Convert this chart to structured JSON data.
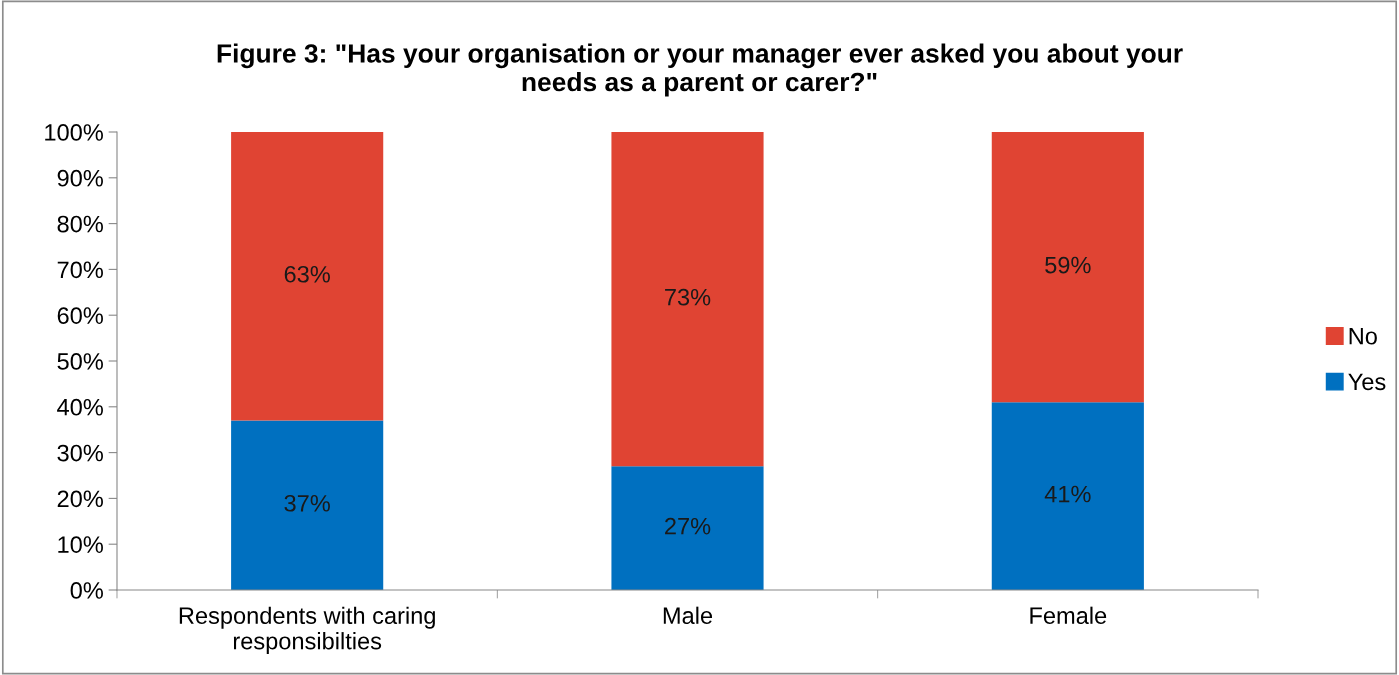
{
  "chart_data": {
    "type": "bar",
    "stacked": true,
    "title": "Figure 3: \"Has your organisation or your manager ever asked you about your\nneeds as a parent or carer?\"",
    "categories": [
      "Respondents with caring\nresponsibilties",
      "Male",
      "Female"
    ],
    "series": [
      {
        "name": "Yes",
        "color": "#0070c0",
        "values": [
          37,
          27,
          41
        ],
        "value_labels": [
          "37%",
          "27%",
          "41%"
        ]
      },
      {
        "name": "No",
        "color": "#e04433",
        "values": [
          63,
          73,
          59
        ],
        "value_labels": [
          "63%",
          "73%",
          "59%"
        ]
      }
    ],
    "ylim": [
      0,
      100
    ],
    "yticks": [
      {
        "value": 0,
        "label": "0%"
      },
      {
        "value": 10,
        "label": "10%"
      },
      {
        "value": 20,
        "label": "20%"
      },
      {
        "value": 30,
        "label": "30%"
      },
      {
        "value": 40,
        "label": "40%"
      },
      {
        "value": 50,
        "label": "50%"
      },
      {
        "value": 60,
        "label": "60%"
      },
      {
        "value": 70,
        "label": "70%"
      },
      {
        "value": 80,
        "label": "80%"
      },
      {
        "value": 90,
        "label": "90%"
      },
      {
        "value": 100,
        "label": "100%"
      }
    ],
    "grid": false,
    "legend": "right"
  }
}
